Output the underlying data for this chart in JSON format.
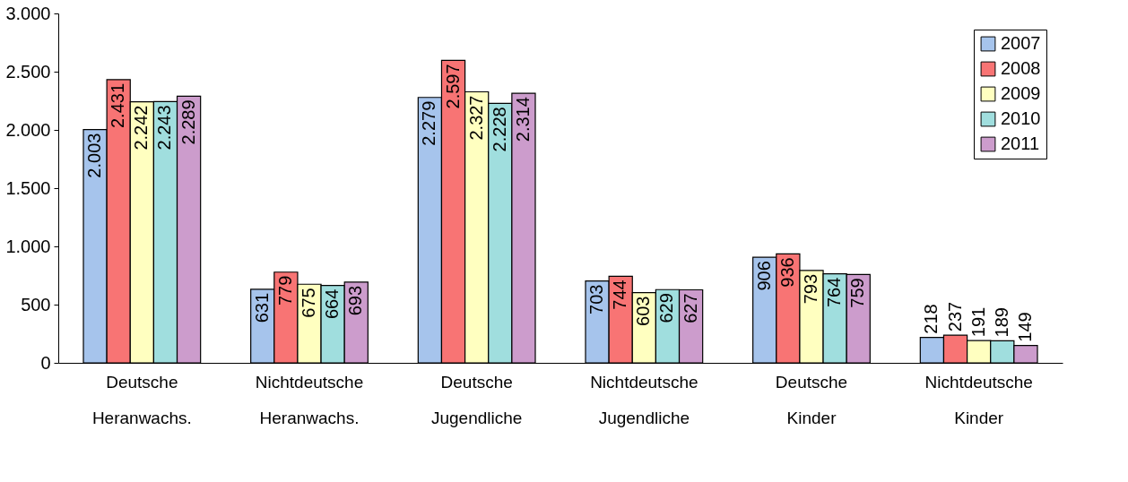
{
  "chart_data": {
    "type": "bar",
    "categories": [
      "Deutsche Heranwachs.",
      "Nichtdeutsche Heranwachs.",
      "Deutsche Jugendliche",
      "Nichtdeutsche Jugendliche",
      "Deutsche Kinder",
      "Nichtdeutsche Kinder"
    ],
    "series": [
      {
        "name": "2007",
        "color": "#a6c4ec",
        "values": [
          2003,
          631,
          2279,
          703,
          906,
          218
        ],
        "value_labels": [
          "2.003",
          "631",
          "2.279",
          "703",
          "906",
          "218"
        ]
      },
      {
        "name": "2008",
        "color": "#f87474",
        "values": [
          2431,
          779,
          2597,
          744,
          936,
          237
        ],
        "value_labels": [
          "2.431",
          "779",
          "2.597",
          "744",
          "936",
          "237"
        ]
      },
      {
        "name": "2009",
        "color": "#ffffc0",
        "values": [
          2242,
          675,
          2327,
          603,
          793,
          191
        ],
        "value_labels": [
          "2.242",
          "675",
          "2.327",
          "603",
          "793",
          "191"
        ]
      },
      {
        "name": "2010",
        "color": "#a0dede",
        "values": [
          2243,
          664,
          2228,
          629,
          764,
          189
        ],
        "value_labels": [
          "2.243",
          "664",
          "2.228",
          "629",
          "764",
          "189"
        ]
      },
      {
        "name": "2011",
        "color": "#cc9ccc",
        "values": [
          2289,
          693,
          2314,
          627,
          759,
          149
        ],
        "value_labels": [
          "2.289",
          "693",
          "2.314",
          "627",
          "759",
          "149"
        ]
      }
    ],
    "ylim": [
      0,
      3000
    ],
    "yticks": [
      0,
      {
        "value": 500,
        "label": "500"
      },
      {
        "value": 1000,
        "label": "1.000"
      },
      {
        "value": 1500,
        "label": "1.500"
      },
      {
        "value": 2000,
        "label": "2.000"
      },
      {
        "value": 2500,
        "label": "2.500"
      },
      {
        "value": 3000,
        "label": "3.000"
      }
    ],
    "grid": false,
    "legend": "top right"
  }
}
